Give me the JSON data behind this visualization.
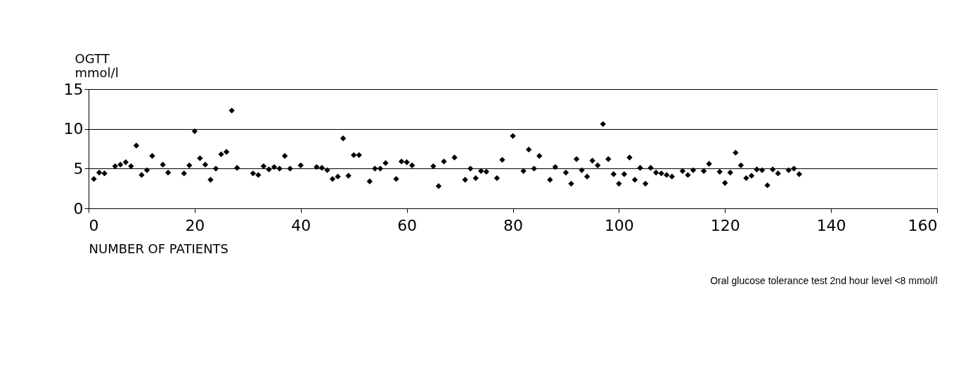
{
  "chart_data": {
    "type": "scatter",
    "ylabel": "OGTT\nmmol/l",
    "xlabel": "NUMBER OF PATIENTS",
    "annotations": [
      "Oral glucose tolerance test   2nd hour level <8 mmol/l"
    ],
    "xlim": [
      0,
      160
    ],
    "xticks": [
      0,
      20,
      40,
      60,
      80,
      100,
      120,
      140,
      160
    ],
    "ylim": [
      0,
      15
    ],
    "yticks": [
      0,
      5,
      10,
      15
    ],
    "grid": "y",
    "marker": "diamond",
    "x": [
      1,
      2,
      3,
      5,
      6,
      7,
      8,
      9,
      10,
      11,
      12,
      14,
      15,
      18,
      19,
      20,
      21,
      22,
      23,
      24,
      25,
      26,
      27,
      28,
      31,
      32,
      33,
      34,
      35,
      36,
      37,
      38,
      40,
      43,
      44,
      45,
      46,
      47,
      48,
      49,
      50,
      51,
      53,
      54,
      55,
      56,
      58,
      59,
      60,
      61,
      65,
      66,
      67,
      69,
      71,
      72,
      73,
      74,
      75,
      77,
      78,
      80,
      82,
      83,
      84,
      85,
      87,
      88,
      90,
      91,
      92,
      93,
      94,
      95,
      96,
      97,
      98,
      99,
      100,
      101,
      102,
      103,
      104,
      105,
      106,
      107,
      108,
      109,
      110,
      112,
      113,
      114,
      116,
      117,
      119,
      120,
      121,
      122,
      123,
      124,
      125,
      126,
      127,
      128,
      129,
      130,
      132,
      133,
      134
    ],
    "series": [
      {
        "color": "#000000",
        "values": [
          3.7,
          4.5,
          4.4,
          5.3,
          5.5,
          5.8,
          5.3,
          7.9,
          4.2,
          4.8,
          6.6,
          5.5,
          4.5,
          4.4,
          5.4,
          9.7,
          6.3,
          5.5,
          3.6,
          5.0,
          6.8,
          7.1,
          12.3,
          5.1,
          4.4,
          4.2,
          5.3,
          4.9,
          5.2,
          5.0,
          6.6,
          5.0,
          5.4,
          5.2,
          5.1,
          4.8,
          3.7,
          4.0,
          8.8,
          4.1,
          6.7,
          6.7,
          3.4,
          5.0,
          5.0,
          5.7,
          3.7,
          5.9,
          5.8,
          5.4,
          5.3,
          2.8,
          5.9,
          6.4,
          3.6,
          5.0,
          3.8,
          4.7,
          4.6,
          3.8,
          6.1,
          9.1,
          4.7,
          7.4,
          5.0,
          6.6,
          3.6,
          5.2,
          4.5,
          3.1,
          6.2,
          4.8,
          4.0,
          6.0,
          5.4,
          10.6,
          6.2,
          4.3,
          3.1,
          4.3,
          6.4,
          3.6,
          5.1,
          3.1,
          5.1,
          4.5,
          4.4,
          4.2,
          4.0,
          4.7,
          4.2,
          4.8,
          4.7,
          5.6,
          4.6,
          3.2,
          4.5,
          7.0,
          5.4,
          3.8,
          4.1,
          4.9,
          4.8,
          2.9,
          4.9,
          4.4,
          4.8,
          5.0,
          4.3
        ]
      }
    ]
  }
}
